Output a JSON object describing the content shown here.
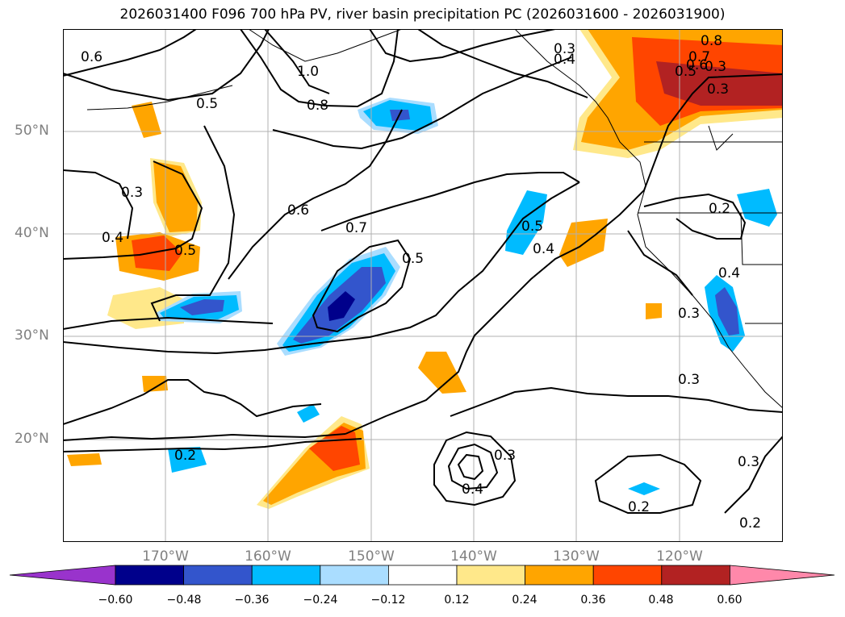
{
  "title": "2026031400 F096 700 hPa PV, river basin precipitation PC (2026031600 - 2026031900)",
  "lat_labels": [
    "50°N",
    "40°N",
    "30°N",
    "20°N"
  ],
  "lon_labels": [
    "170°W",
    "160°W",
    "150°W",
    "140°W",
    "130°W",
    "120°W"
  ],
  "colorbar": {
    "ticks": [
      "−0.60",
      "−0.48",
      "−0.36",
      "−0.24",
      "−0.12",
      "0.12",
      "0.24",
      "0.36",
      "0.48",
      "0.60"
    ],
    "colors": [
      "#9933cc",
      "#00008b",
      "#3355cc",
      "#00bbff",
      "#aaddff",
      "#ffffff",
      "#ffe88a",
      "#ffa500",
      "#ff4500",
      "#b22222",
      "#ff88aa"
    ]
  },
  "contour_labels": [
    "0.6",
    "1.0",
    "0.5",
    "0.8",
    "0.3",
    "0.4",
    "0.8",
    "0.7",
    "0.6",
    "0.5",
    "0.3",
    "0.3",
    "0.4",
    "0.5",
    "0.6",
    "0.7",
    "0.5",
    "0.5",
    "0.4",
    "0.2",
    "0.4",
    "0.3",
    "0.3",
    "0.2",
    "0.3",
    "0.4",
    "0.3",
    "0.2",
    "0.3",
    "0.2"
  ]
}
